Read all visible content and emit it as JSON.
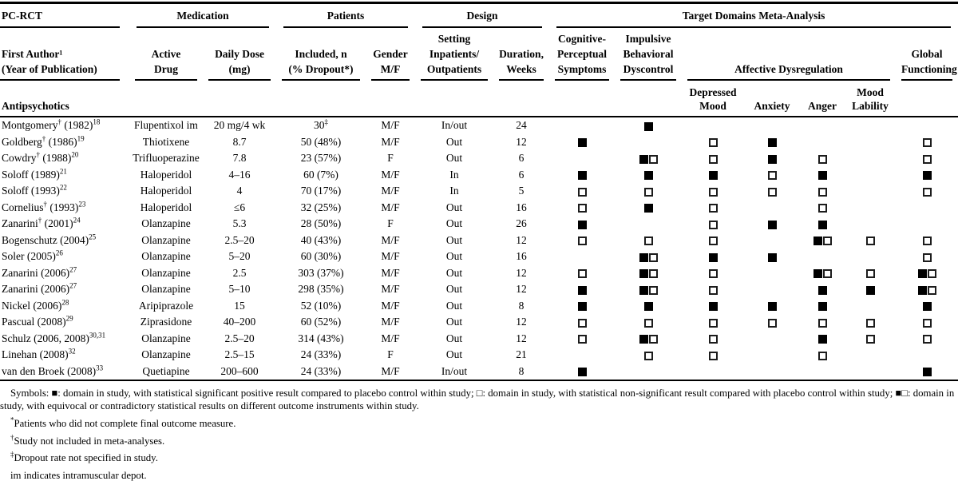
{
  "colors": {
    "text": "#000000",
    "background": "#ffffff"
  },
  "group_headers": {
    "pc_rct": "PC-RCT",
    "medication": "Medication",
    "patients": "Patients",
    "design": "Design",
    "target_domains": "Target Domains Meta-Analysis"
  },
  "columns": {
    "first_author": "First Author¹\n(Year of Publication)",
    "active_drug": "Active\nDrug",
    "daily_dose": "Daily Dose\n(mg)",
    "included": "Included, n\n(% Dropout*)",
    "gender": "Gender\nM/F",
    "setting": "Setting\nInpatients/\nOutpatients",
    "duration": "Duration,\nWeeks",
    "cognitive": "Cognitive-\nPerceptual\nSymptoms",
    "impulsive": "Impulsive\nBehavioral\nDyscontrol",
    "affective": "Affective Dysregulation",
    "global": "Global\nFunctioning",
    "depressed": "Depressed\nMood",
    "anxiety": "Anxiety",
    "anger": "Anger",
    "mood_lability": "Mood\nLability"
  },
  "section_label": "Antipsychotics",
  "rows": [
    {
      "author": "Montgomery",
      "dagger": "†",
      "year": "(1982)",
      "ref": "18",
      "drug": "Flupentixol im",
      "dose": "20 mg/4 wk",
      "included": "30",
      "included_sup": "‡",
      "gender": "M/F",
      "setting": "In/out",
      "duration": "24",
      "domains": {
        "cognitive": "",
        "impulsive": "filled",
        "depressed": "",
        "anxiety": "",
        "anger": "",
        "mood_lability": "",
        "global": ""
      }
    },
    {
      "author": "Goldberg",
      "dagger": "†",
      "year": "(1986)",
      "ref": "19",
      "drug": "Thiotixene",
      "dose": "8.7",
      "included": "50 (48%)",
      "included_sup": "",
      "gender": "M/F",
      "setting": "Out",
      "duration": "12",
      "domains": {
        "cognitive": "filled",
        "impulsive": "",
        "depressed": "open",
        "anxiety": "filled",
        "anger": "",
        "mood_lability": "",
        "global": "open"
      }
    },
    {
      "author": "Cowdry",
      "dagger": "†",
      "year": "(1988)",
      "ref": "20",
      "drug": "Trifluoperazine",
      "dose": "7.8",
      "included": "23 (57%)",
      "included_sup": "",
      "gender": "F",
      "setting": "Out",
      "duration": "6",
      "domains": {
        "cognitive": "",
        "impulsive": "equiv",
        "depressed": "open",
        "anxiety": "filled",
        "anger": "open",
        "mood_lability": "",
        "global": "open"
      }
    },
    {
      "author": "Soloff",
      "dagger": "",
      "year": "(1989)",
      "ref": "21",
      "drug": "Haloperidol",
      "dose": "4–16",
      "included": "60 (7%)",
      "included_sup": "",
      "gender": "M/F",
      "setting": "In",
      "duration": "6",
      "domains": {
        "cognitive": "filled",
        "impulsive": "filled",
        "depressed": "filled",
        "anxiety": "open",
        "anger": "filled",
        "mood_lability": "",
        "global": "filled"
      }
    },
    {
      "author": "Soloff",
      "dagger": "",
      "year": "(1993)",
      "ref": "22",
      "drug": "Haloperidol",
      "dose": "4",
      "included": "70 (17%)",
      "included_sup": "",
      "gender": "M/F",
      "setting": "In",
      "duration": "5",
      "domains": {
        "cognitive": "open",
        "impulsive": "open",
        "depressed": "open",
        "anxiety": "open",
        "anger": "open",
        "mood_lability": "",
        "global": "open"
      }
    },
    {
      "author": "Cornelius",
      "dagger": "†",
      "year": "(1993)",
      "ref": "23",
      "drug": "Haloperidol",
      "dose": "≤6",
      "included": "32 (25%)",
      "included_sup": "",
      "gender": "M/F",
      "setting": "Out",
      "duration": "16",
      "domains": {
        "cognitive": "open",
        "impulsive": "filled",
        "depressed": "open",
        "anxiety": "",
        "anger": "open",
        "mood_lability": "",
        "global": ""
      }
    },
    {
      "author": "Zanarini",
      "dagger": "†",
      "year": "(2001)",
      "ref": "24",
      "drug": "Olanzapine",
      "dose": "5.3",
      "included": "28 (50%)",
      "included_sup": "",
      "gender": "F",
      "setting": "Out",
      "duration": "26",
      "domains": {
        "cognitive": "filled",
        "impulsive": "",
        "depressed": "open",
        "anxiety": "filled",
        "anger": "filled",
        "mood_lability": "",
        "global": ""
      }
    },
    {
      "author": "Bogenschutz",
      "dagger": "",
      "year": "(2004)",
      "ref": "25",
      "drug": "Olanzapine",
      "dose": "2.5–20",
      "included": "40 (43%)",
      "included_sup": "",
      "gender": "M/F",
      "setting": "Out",
      "duration": "12",
      "domains": {
        "cognitive": "open",
        "impulsive": "open",
        "depressed": "open",
        "anxiety": "",
        "anger": "equiv",
        "mood_lability": "open",
        "global": "open"
      }
    },
    {
      "author": "Soler",
      "dagger": "",
      "year": "(2005)",
      "ref": "26",
      "drug": "Olanzapine",
      "dose": "5–20",
      "included": "60 (30%)",
      "included_sup": "",
      "gender": "M/F",
      "setting": "Out",
      "duration": "16",
      "domains": {
        "cognitive": "",
        "impulsive": "equiv",
        "depressed": "filled",
        "anxiety": "filled",
        "anger": "",
        "mood_lability": "",
        "global": "open"
      }
    },
    {
      "author": "Zanarini",
      "dagger": "",
      "year": "(2006)",
      "ref": "27",
      "drug": "Olanzapine",
      "dose": "2.5",
      "included": "303 (37%)",
      "included_sup": "",
      "gender": "M/F",
      "setting": "Out",
      "duration": "12",
      "domains": {
        "cognitive": "open",
        "impulsive": "equiv",
        "depressed": "open",
        "anxiety": "",
        "anger": "equiv",
        "mood_lability": "open",
        "global": "equiv"
      }
    },
    {
      "author": "Zanarini",
      "dagger": "",
      "year": "(2006)",
      "ref": "27",
      "drug": "Olanzapine",
      "dose": "5–10",
      "included": "298 (35%)",
      "included_sup": "",
      "gender": "M/F",
      "setting": "Out",
      "duration": "12",
      "domains": {
        "cognitive": "filled",
        "impulsive": "equiv",
        "depressed": "open",
        "anxiety": "",
        "anger": "filled",
        "mood_lability": "filled",
        "global": "equiv"
      }
    },
    {
      "author": "Nickel",
      "dagger": "",
      "year": "(2006)",
      "ref": "28",
      "drug": "Aripiprazole",
      "dose": "15",
      "included": "52 (10%)",
      "included_sup": "",
      "gender": "M/F",
      "setting": "Out",
      "duration": "8",
      "domains": {
        "cognitive": "filled",
        "impulsive": "filled",
        "depressed": "filled",
        "anxiety": "filled",
        "anger": "filled",
        "mood_lability": "",
        "global": "filled"
      }
    },
    {
      "author": "Pascual",
      "dagger": "",
      "year": "(2008)",
      "ref": "29",
      "drug": "Ziprasidone",
      "dose": "40–200",
      "included": "60 (52%)",
      "included_sup": "",
      "gender": "M/F",
      "setting": "Out",
      "duration": "12",
      "domains": {
        "cognitive": "open",
        "impulsive": "open",
        "depressed": "open",
        "anxiety": "open",
        "anger": "open",
        "mood_lability": "open",
        "global": "open"
      }
    },
    {
      "author": "Schulz",
      "dagger": "",
      "year": "(2006, 2008)",
      "ref": "30,31",
      "drug": "Olanzapine",
      "dose": "2.5–20",
      "included": "314 (43%)",
      "included_sup": "",
      "gender": "M/F",
      "setting": "Out",
      "duration": "12",
      "domains": {
        "cognitive": "open",
        "impulsive": "equiv",
        "depressed": "open",
        "anxiety": "",
        "anger": "filled",
        "mood_lability": "open",
        "global": "open"
      }
    },
    {
      "author": "Linehan",
      "dagger": "",
      "year": "(2008)",
      "ref": "32",
      "drug": "Olanzapine",
      "dose": "2.5–15",
      "included": "24 (33%)",
      "included_sup": "",
      "gender": "F",
      "setting": "Out",
      "duration": "21",
      "domains": {
        "cognitive": "",
        "impulsive": "open",
        "depressed": "open",
        "anxiety": "",
        "anger": "open",
        "mood_lability": "",
        "global": ""
      }
    },
    {
      "author": "van den Broek",
      "dagger": "",
      "year": "(2008)",
      "ref": "33",
      "drug": "Quetiapine",
      "dose": "200–600",
      "included": "24 (33%)",
      "included_sup": "",
      "gender": "M/F",
      "setting": "In/out",
      "duration": "8",
      "domains": {
        "cognitive": "filled",
        "impulsive": "",
        "depressed": "",
        "anxiety": "",
        "anger": "",
        "mood_lability": "",
        "global": "filled"
      }
    }
  ],
  "footer": {
    "symbols_paragraph": "Symbols: ■: domain in study, with statistical significant positive result compared to placebo control within study; □: domain in study, with statistical non-significant result compared with placebo control within study; ■□: domain in study, with equivocal or contradictory statistical results on different outcome instruments within study.",
    "footnotes": [
      {
        "marker": "*",
        "text": "Patients who did not complete final outcome measure."
      },
      {
        "marker": "†",
        "text": "Study not included in meta-analyses."
      },
      {
        "marker": "‡",
        "text": "Dropout rate not specified in study."
      },
      {
        "marker": "",
        "text": "im indicates intramuscular depot."
      }
    ]
  }
}
